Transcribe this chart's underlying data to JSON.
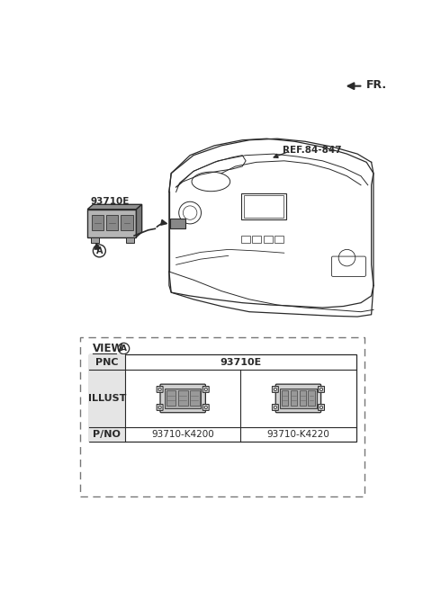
{
  "bg_color": "#ffffff",
  "fr_label": "FR.",
  "ref_label": "REF.84-847",
  "part_label": "93710E",
  "circle_label": "A",
  "view_label": "VIEW",
  "pnc_label": "PNC",
  "illust_label": "ILLUST",
  "pno_label": "P/NO",
  "pnc_value": "93710E",
  "pno_left": "93710-K4200",
  "pno_right": "93710-K4220",
  "line_color": "#2a2a2a",
  "dash_color": "#777777",
  "gray_fill": "#c0c0c0",
  "light_gray": "#e0e0e0"
}
